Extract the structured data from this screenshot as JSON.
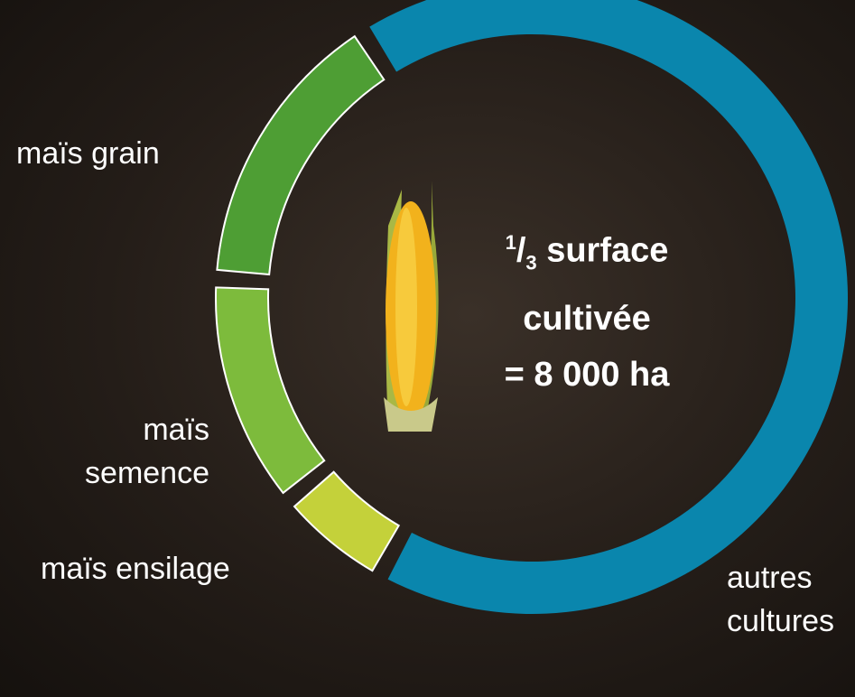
{
  "chart_data": {
    "type": "donut",
    "categories": [
      "autres cultures",
      "maïs ensilage",
      "maïs semence",
      "maïs grain"
    ],
    "values": [
      67,
      6,
      12,
      15
    ],
    "colors": [
      "#0a86ad",
      "#c4d13a",
      "#7dbb3c",
      "#4e9e34"
    ],
    "annotation": {
      "numerator": 1,
      "denominator": 3,
      "text": "surface cultivée",
      "total": "= 8 000 ha"
    }
  }
}
